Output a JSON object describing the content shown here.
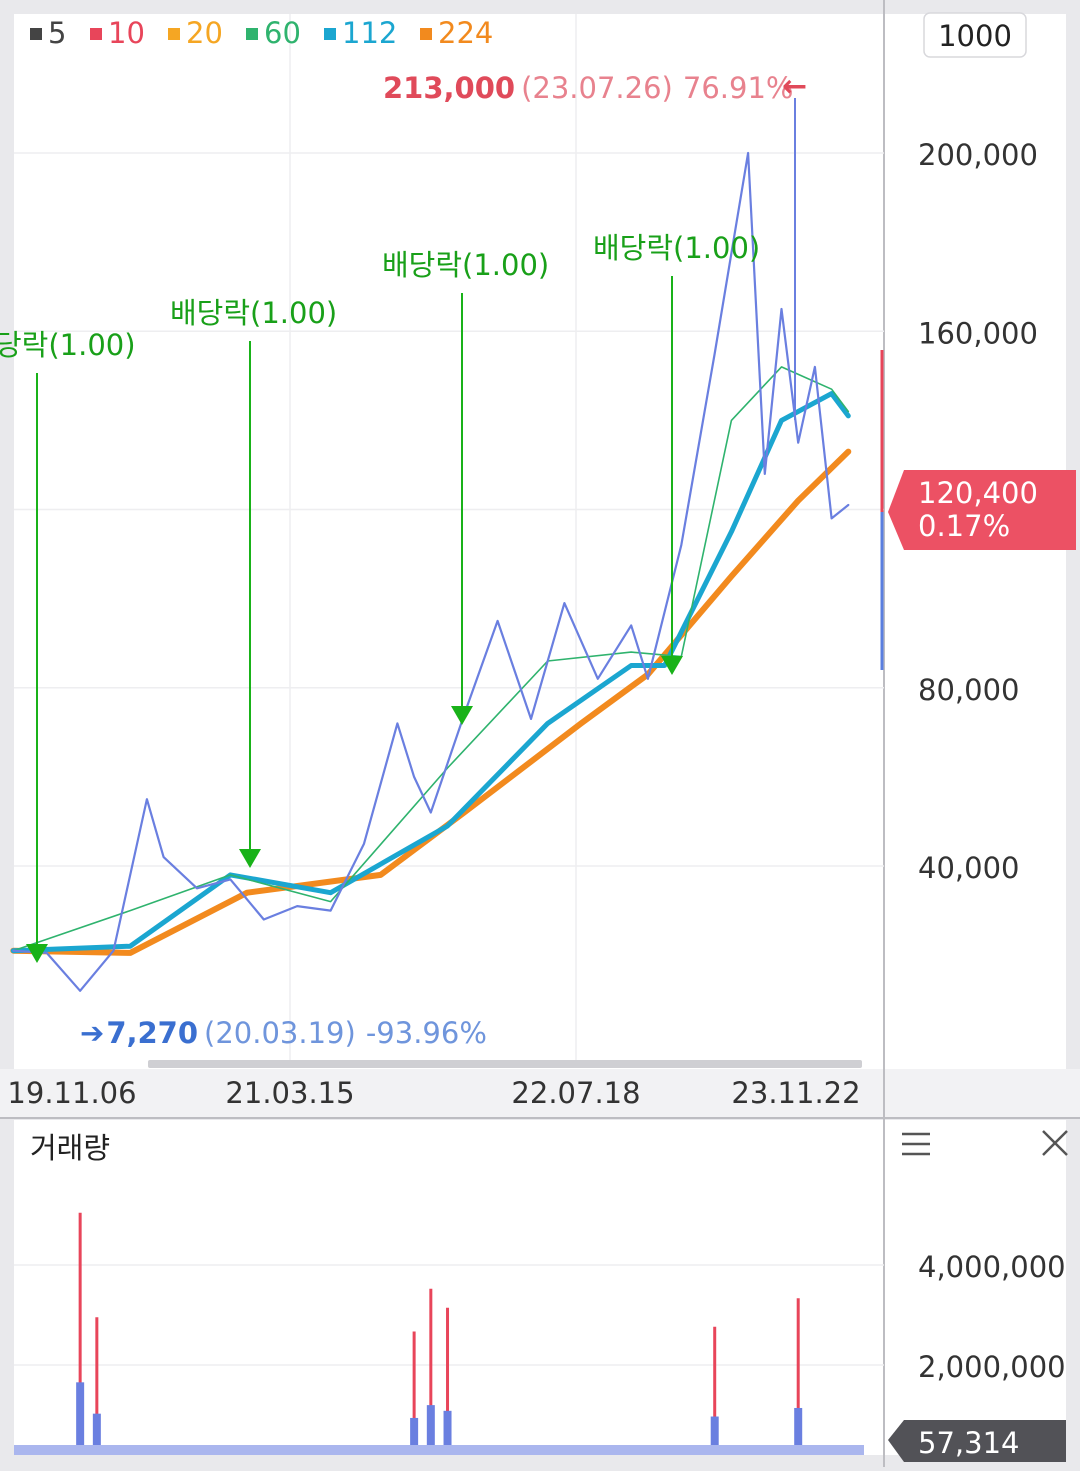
{
  "legend": [
    {
      "label": "5",
      "color": "#444444"
    },
    {
      "label": "10",
      "color": "#e8455a"
    },
    {
      "label": "20",
      "color": "#f5a623"
    },
    {
      "label": "60",
      "color": "#2fb36e"
    },
    {
      "label": "112",
      "color": "#1ba6d0"
    },
    {
      "label": "224",
      "color": "#f28a1e"
    }
  ],
  "ma_period_box": "1000",
  "price_axis_ticks": [
    "200,000",
    "160,000",
    "80,000",
    "40,000"
  ],
  "date_axis_ticks": [
    "19.11.06",
    "21.03.15",
    "22.07.18",
    "23.11.22"
  ],
  "high_annotation": {
    "price": "213,000",
    "date": "(23.07.26)",
    "pct": "76.91%",
    "arrow": "←"
  },
  "low_annotation": {
    "arrow": "➔",
    "price": "7,270",
    "date": "(20.03.19)",
    "pct": "-93.96%"
  },
  "current_price_box": {
    "price": "120,400",
    "change": "0.17%"
  },
  "dividend_events": [
    {
      "label": "당락(1.00)",
      "date": "19.11.06"
    },
    {
      "label": "배당락(1.00)",
      "date": "20.12.28"
    },
    {
      "label": "배당락(1.00)",
      "date": "21.12.28"
    },
    {
      "label": "배당락(1.00)",
      "date": "22.12.28"
    }
  ],
  "volume_panel": {
    "title": "거래량",
    "ticks": [
      "4,000,000",
      "2,000,000"
    ],
    "current_volume": "57,314",
    "menu_icon": "hamburger-menu-icon",
    "close_icon": "close-icon"
  },
  "chart_data": {
    "type": "line",
    "y_axis_range": [
      0,
      220000
    ],
    "x_axis_range": [
      "2019-10",
      "2024-02"
    ],
    "series": [
      {
        "name": "5",
        "color": "#6a7fe0",
        "x": [
          "2019-11",
          "2020-01",
          "2020-03",
          "2020-05",
          "2020-07",
          "2020-08",
          "2020-10",
          "2020-12",
          "2021-02",
          "2021-04",
          "2021-06",
          "2021-08",
          "2021-10",
          "2021-11",
          "2021-12",
          "2022-02",
          "2022-04",
          "2022-06",
          "2022-08",
          "2022-10",
          "2022-12",
          "2023-01",
          "2023-03",
          "2023-05",
          "2023-07",
          "2023-08",
          "2023-09",
          "2023-10",
          "2023-11",
          "2023-12",
          "2024-01"
        ],
        "y": [
          21000,
          20500,
          12000,
          21000,
          55000,
          42000,
          35000,
          37000,
          28000,
          31000,
          30000,
          45000,
          72000,
          60000,
          52000,
          74000,
          95000,
          73000,
          99000,
          82000,
          94000,
          82000,
          112000,
          155000,
          200000,
          128000,
          165000,
          135000,
          152000,
          118000,
          121000
        ]
      },
      {
        "name": "224",
        "color": "#f28a1e",
        "x": [
          "2019-11",
          "2020-06",
          "2021-01",
          "2021-09",
          "2022-02",
          "2022-09",
          "2023-01",
          "2023-06",
          "2023-10",
          "2024-01"
        ],
        "y": [
          21000,
          20500,
          34000,
          38000,
          52000,
          72000,
          83000,
          105000,
          122000,
          133000
        ]
      },
      {
        "name": "112",
        "color": "#1ba6d0",
        "x": [
          "2019-11",
          "2020-06",
          "2020-12",
          "2021-06",
          "2022-01",
          "2022-07",
          "2022-12",
          "2023-02",
          "2023-06",
          "2023-09",
          "2023-12",
          "2024-01"
        ],
        "y": [
          21000,
          22000,
          38000,
          34000,
          49000,
          72000,
          85000,
          85000,
          115000,
          140000,
          146000,
          141000
        ]
      },
      {
        "name": "60",
        "color": "#2fb36e",
        "x": [
          "2019-11",
          "2020-06",
          "2020-12",
          "2021-06",
          "2022-01",
          "2022-07",
          "2022-12",
          "2023-03",
          "2023-06",
          "2023-09",
          "2023-12",
          "2024-01"
        ],
        "y": [
          21000,
          30000,
          38000,
          32000,
          62000,
          86000,
          88000,
          87000,
          140000,
          152000,
          147000,
          142000
        ]
      }
    ],
    "volume": {
      "y_axis_range": [
        0,
        5500000
      ],
      "x": [
        "2020-03",
        "2020-04",
        "2021-11",
        "2021-12",
        "2022-01",
        "2023-05",
        "2023-10",
        "2024-01"
      ],
      "values": [
        5100000,
        2900000,
        2600000,
        3500000,
        3100000,
        2700000,
        3300000,
        57314
      ]
    }
  }
}
